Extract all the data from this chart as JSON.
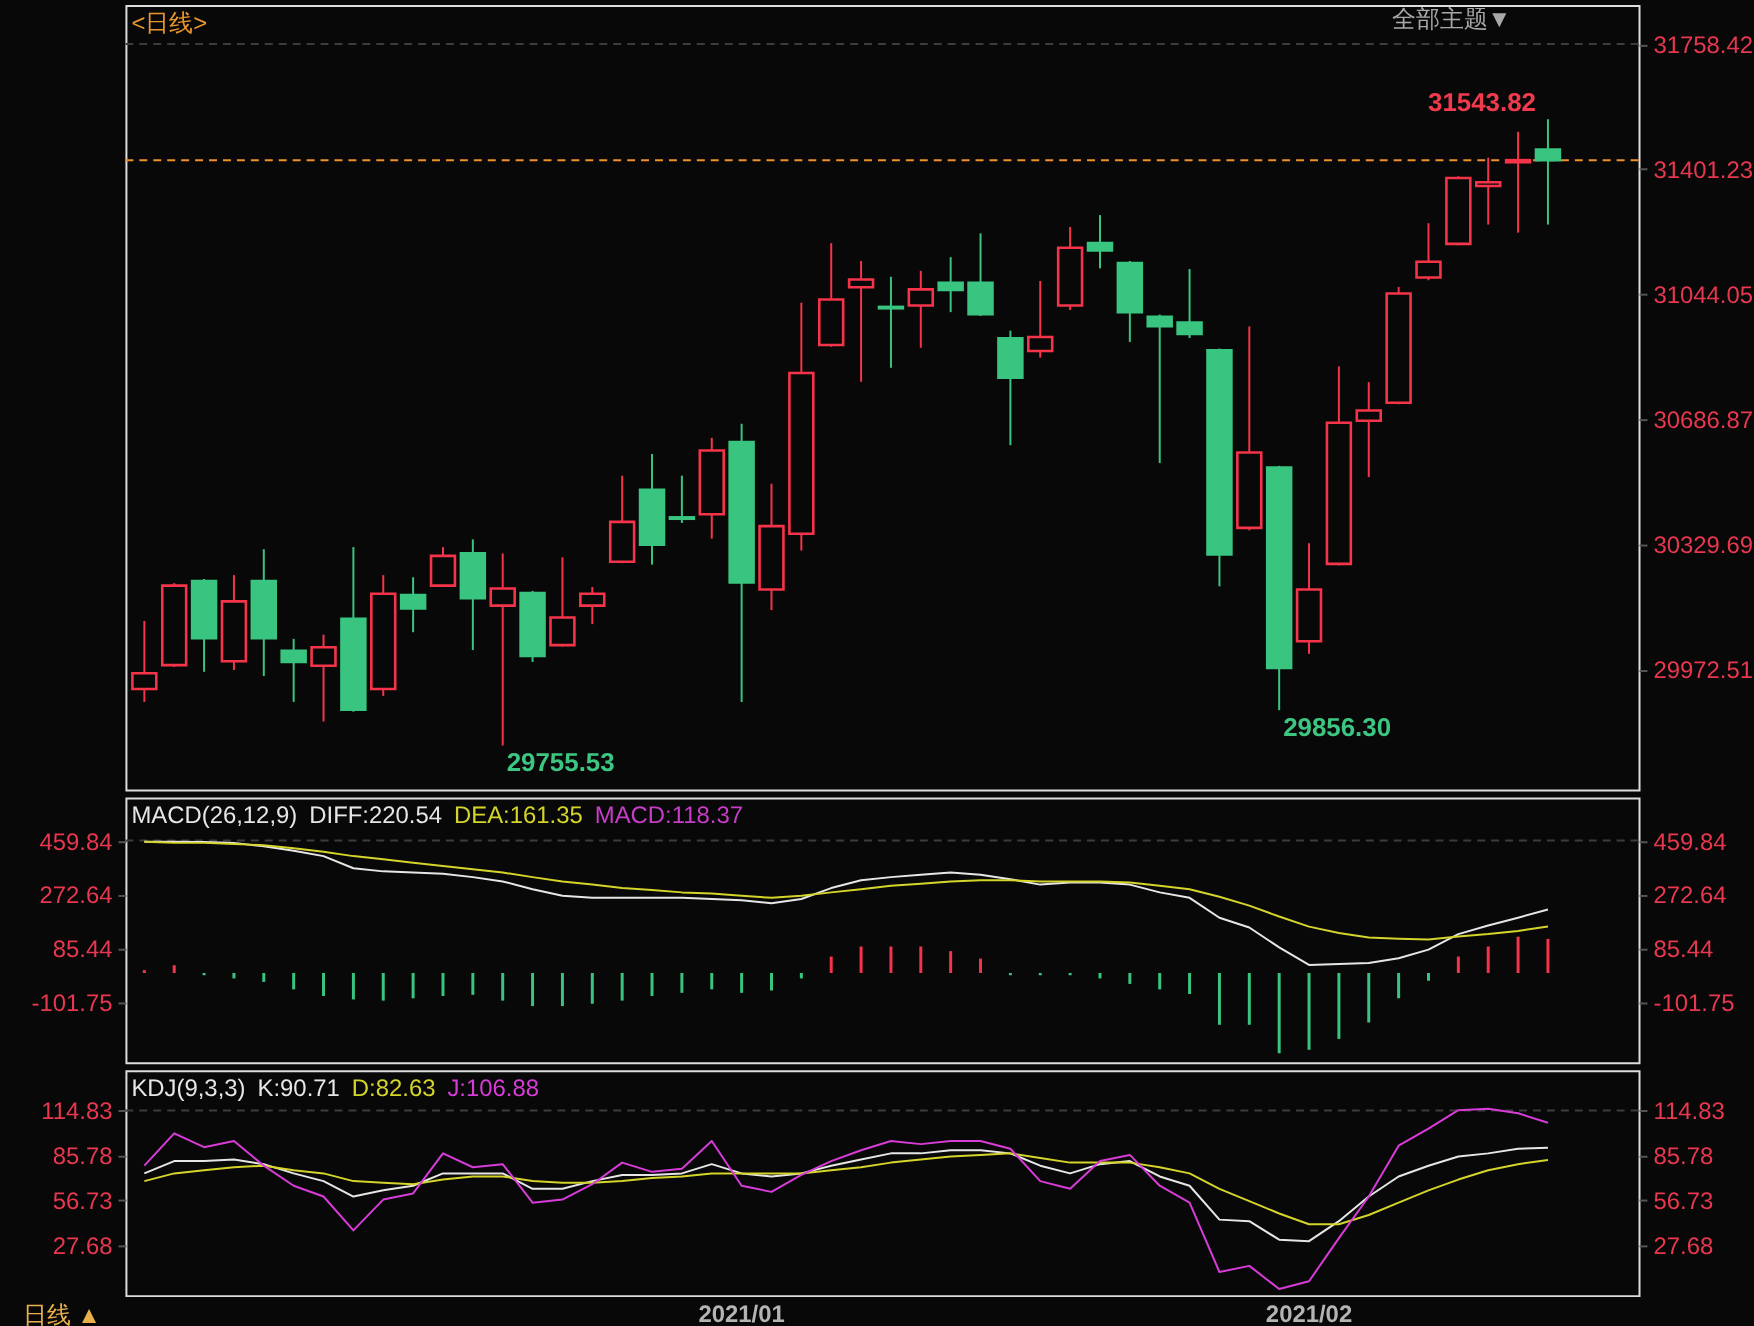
{
  "chart_data": [
    {
      "type": "candlestick",
      "title": "<日线>",
      "categories": [
        null,
        null,
        null,
        null,
        null,
        null,
        null,
        null,
        null,
        null,
        null,
        null,
        null,
        null,
        null,
        null,
        null,
        null,
        null,
        null,
        "2021/01",
        null,
        null,
        null,
        null,
        null,
        null,
        null,
        null,
        null,
        null,
        null,
        null,
        null,
        null,
        null,
        null,
        null,
        null,
        "2021/02",
        null,
        null,
        null,
        null,
        null,
        null,
        null,
        null
      ],
      "ohlc": [
        [
          29917,
          30111,
          29880,
          29962
        ],
        [
          29985,
          30219,
          29980,
          30212
        ],
        [
          30225,
          30231,
          29966,
          30062
        ],
        [
          29996,
          30242,
          29971,
          30167
        ],
        [
          30225,
          30316,
          29954,
          30062
        ],
        [
          30026,
          30060,
          29880,
          29994
        ],
        [
          29983,
          30072,
          29824,
          30036
        ],
        [
          30117,
          30322,
          29852,
          29858
        ],
        [
          29917,
          30242,
          29897,
          30189
        ],
        [
          30185,
          30236,
          30079,
          30147
        ],
        [
          30212,
          30322,
          30208,
          30297
        ],
        [
          30304,
          30344,
          30028,
          30176
        ],
        [
          30155,
          30304,
          29755.53,
          30204
        ],
        [
          30191,
          30197,
          29994,
          30011
        ],
        [
          30042,
          30293,
          30038,
          30121
        ],
        [
          30155,
          30208,
          30102,
          30189
        ],
        [
          30280,
          30526,
          30276,
          30394
        ],
        [
          30486,
          30588,
          30272,
          30329
        ],
        [
          30407,
          30526,
          30391,
          30403
        ],
        [
          30416,
          30634,
          30346,
          30598
        ],
        [
          30622,
          30674,
          29880,
          30221
        ],
        [
          30201,
          30503,
          30142,
          30382
        ],
        [
          30360,
          31020,
          30312,
          30819
        ],
        [
          30899,
          31190,
          30894,
          31029
        ],
        [
          31064,
          31139,
          30794,
          31086
        ],
        [
          31008,
          31094,
          30834,
          31004
        ],
        [
          31012,
          31111,
          30891,
          31058
        ],
        [
          31077,
          31150,
          30993,
          31056
        ],
        [
          31077,
          31218,
          30982,
          30987
        ],
        [
          30918,
          30940,
          30613,
          30806
        ],
        [
          30882,
          31082,
          30863,
          30922
        ],
        [
          31012,
          31236,
          30999,
          31177
        ],
        [
          31190,
          31270,
          31118,
          31169
        ],
        [
          31133,
          31139,
          30908,
          30993
        ],
        [
          30980,
          30986,
          30562,
          30953
        ],
        [
          30963,
          31116,
          30919,
          30931
        ],
        [
          30884,
          30889,
          30210,
          30301
        ],
        [
          30377,
          30952,
          30370,
          30592
        ],
        [
          30549,
          30554,
          29856.3,
          29977
        ],
        [
          30053,
          30333,
          30017,
          30201
        ],
        [
          30274,
          30838,
          30270,
          30677
        ],
        [
          30683,
          30793,
          30522,
          30712
        ],
        [
          30734,
          31065,
          30730,
          31046
        ],
        [
          31092,
          31247,
          31084,
          31137
        ],
        [
          31188,
          31381,
          31184,
          31376
        ],
        [
          31353,
          31434,
          31243,
          31364
        ],
        [
          31421,
          31508,
          31220,
          31427
        ],
        [
          31457,
          31543.82,
          31243,
          31427
        ]
      ],
      "colors": [
        "#f5344a",
        "#f5344a",
        "#39c580",
        "#f5344a",
        "#39c580",
        "#39c580",
        "#f5344a",
        "#39c580",
        "#f5344a",
        "#39c580",
        "#f5344a",
        "#39c580",
        "#f5344a",
        "#39c580",
        "#f5344a",
        "#f5344a",
        "#f5344a",
        "#39c580",
        "#39c580",
        "#f5344a",
        "#39c580",
        "#f5344a",
        "#f5344a",
        "#f5344a",
        "#f5344a",
        "#39c580",
        "#f5344a",
        "#39c580",
        "#39c580",
        "#39c580",
        "#f5344a",
        "#f5344a",
        "#39c580",
        "#39c580",
        "#39c580",
        "#39c580",
        "#39c580",
        "#f5344a",
        "#39c580",
        "#f5344a",
        "#f5344a",
        "#f5344a",
        "#f5344a",
        "#f5344a",
        "#f5344a",
        "#f5344a",
        "#f5344a",
        "#39c580"
      ],
      "ylim": [
        29630,
        31870
      ],
      "yticks": [
        29972.51,
        30329.69,
        30686.87,
        31044.05,
        31401.23,
        31758.42
      ],
      "tick_labels": "y",
      "ref_lines": [
        {
          "axis": "y",
          "value": 31758.42,
          "color": "#3c3c3c",
          "line_style": "dashed"
        },
        {
          "axis": "y",
          "value": 31427,
          "color": "#f0902a",
          "line_style": "dashed"
        }
      ],
      "annotations": [
        "31543.82",
        "29755.53",
        "29856.30",
        "全部主题▼"
      ]
    },
    {
      "type": "line",
      "title": "MACD(26,12,9)",
      "categories": [
        null,
        null,
        null,
        null,
        null,
        null,
        null,
        null,
        null,
        null,
        null,
        null,
        null,
        null,
        null,
        null,
        null,
        null,
        null,
        null,
        "2021/01",
        null,
        null,
        null,
        null,
        null,
        null,
        null,
        null,
        null,
        null,
        null,
        null,
        null,
        null,
        null,
        null,
        null,
        null,
        "2021/02",
        null,
        null,
        null,
        null,
        null,
        null,
        null,
        null
      ],
      "series": [
        {
          "name": "DIFF:220.54",
          "color": "#e6e6e6",
          "values": [
            456,
            456,
            455,
            452,
            440,
            425,
            406,
            364,
            353,
            349,
            345,
            333,
            318,
            291,
            268,
            261,
            261,
            261,
            261,
            257,
            253,
            242,
            257,
            295,
            322,
            333,
            341,
            349,
            341,
            326,
            307,
            314,
            314,
            307,
            280,
            261,
            192,
            158,
            89,
            28,
            31,
            35,
            51,
            81,
            135,
            165,
            192,
            220.54
          ]
        },
        {
          "name": "DEA:161.35",
          "color": "#d4d42a",
          "values": [
            456,
            452,
            452,
            448,
            444,
            433,
            421,
            406,
            395,
            383,
            372,
            360,
            349,
            333,
            318,
            307,
            295,
            288,
            280,
            276,
            268,
            261,
            268,
            280,
            291,
            303,
            310,
            318,
            322,
            322,
            318,
            318,
            318,
            314,
            303,
            291,
            265,
            234,
            196,
            161,
            139,
            123,
            119,
            116,
            127,
            135,
            146,
            161.35
          ]
        },
        {
          "type": "bar",
          "colors": [
            "#f5344a",
            "#f5344a",
            "#39c580",
            "#39c580",
            "#39c580",
            "#39c580",
            "#39c580",
            "#39c580",
            "#39c580",
            "#39c580",
            "#39c580",
            "#39c580",
            "#39c580",
            "#39c580",
            "#39c580",
            "#39c580",
            "#39c580",
            "#39c580",
            "#39c580",
            "#39c580",
            "#39c580",
            "#39c580",
            "#39c580",
            "#f5344a",
            "#f5344a",
            "#f5344a",
            "#f5344a",
            "#f5344a",
            "#f5344a",
            "#39c580",
            "#39c580",
            "#39c580",
            "#39c580",
            "#39c580",
            "#39c580",
            "#39c580",
            "#39c580",
            "#39c580",
            "#39c580",
            "#39c580",
            "#39c580",
            "#39c580",
            "#39c580",
            "#39c580",
            "#f5344a",
            "#f5344a",
            "#f5344a",
            "#f5344a"
          ],
          "values": [
            10,
            27,
            -8,
            -19,
            -31,
            -57,
            -80,
            -92,
            -96,
            -88,
            -80,
            -76,
            -96,
            -115,
            -115,
            -107,
            -96,
            -80,
            -69,
            -57,
            -69,
            -61,
            -19,
            57,
            92,
            92,
            92,
            76,
            50,
            -8,
            -8,
            -8,
            -19,
            -38,
            -57,
            -73,
            -180,
            -180,
            -279,
            -267,
            -229,
            -172,
            -88,
            -27,
            57,
            92,
            126,
            118.37
          ]
        }
      ],
      "ylim": [
        -310,
        610
      ],
      "yticks": [
        -101.75,
        85.44,
        272.64,
        459.84
      ],
      "y2lim": [
        -310,
        610
      ],
      "y2ticks": [
        -101.75,
        85.44,
        272.64,
        459.84
      ],
      "legend": "top left",
      "tick_labels": "y",
      "ref_lines": [
        {
          "axis": "y",
          "value": 459.84,
          "color": "#3c3c3c",
          "line_style": "dashed"
        }
      ],
      "annotations": [
        "MACD:118.37"
      ]
    },
    {
      "type": "line",
      "title": "KDJ(9,3,3)",
      "categories": [
        null,
        null,
        null,
        null,
        null,
        null,
        null,
        null,
        null,
        null,
        null,
        null,
        null,
        null,
        null,
        null,
        null,
        null,
        null,
        null,
        "2021/01",
        null,
        null,
        null,
        null,
        null,
        null,
        null,
        null,
        null,
        null,
        null,
        null,
        null,
        null,
        null,
        null,
        null,
        null,
        "2021/02",
        null,
        null,
        null,
        null,
        null,
        null,
        null,
        null
      ],
      "series": [
        {
          "name": "K:90.71",
          "color": "#e6e6e6",
          "values": [
            74,
            82,
            82,
            83,
            80,
            74,
            69,
            59,
            63,
            66,
            74,
            74,
            74,
            64,
            64,
            69,
            73,
            73,
            74,
            80,
            74,
            72,
            74,
            79,
            83,
            87,
            87,
            89,
            89,
            87,
            79,
            74,
            80,
            82,
            72,
            66,
            44,
            43,
            31,
            30,
            43,
            59,
            72,
            79,
            85,
            87,
            90,
            90.71
          ]
        },
        {
          "name": "D:82.63",
          "color": "#d4d42a",
          "values": [
            69,
            74,
            76,
            78,
            79,
            76,
            74,
            69,
            68,
            67,
            70,
            72,
            72,
            69,
            68,
            68,
            69,
            71,
            72,
            74,
            74,
            74,
            74,
            76,
            78,
            81,
            83,
            85,
            86,
            87,
            84,
            81,
            81,
            81,
            78,
            74,
            64,
            56,
            48,
            41,
            41,
            47,
            55,
            63,
            70,
            76,
            80,
            82.63
          ]
        },
        {
          "name": "J:106.88",
          "color": "#d83cd8",
          "values": [
            79,
            100,
            91,
            95,
            79,
            66,
            59,
            37,
            57,
            61,
            87,
            78,
            80,
            55,
            57,
            67,
            81,
            75,
            77,
            95,
            66,
            62,
            73,
            82,
            89,
            95,
            93,
            95,
            95,
            90,
            69,
            64,
            82,
            86,
            66,
            55,
            10,
            14,
            -1,
            4,
            32,
            59,
            92,
            103,
            115,
            116,
            113,
            106.88
          ]
        }
      ],
      "ylim": [
        -5,
        141
      ],
      "yticks": [
        27.68,
        56.73,
        85.78,
        114.83
      ],
      "y2lim": [
        -5,
        141
      ],
      "y2ticks": [
        27.68,
        56.73,
        85.78,
        114.83
      ],
      "legend": "top left",
      "ref_lines": [
        {
          "axis": "y",
          "value": 114.83,
          "color": "#3c3c3c",
          "line_style": "dashed"
        }
      ],
      "annotations": [
        "日线 ▲"
      ]
    }
  ]
}
